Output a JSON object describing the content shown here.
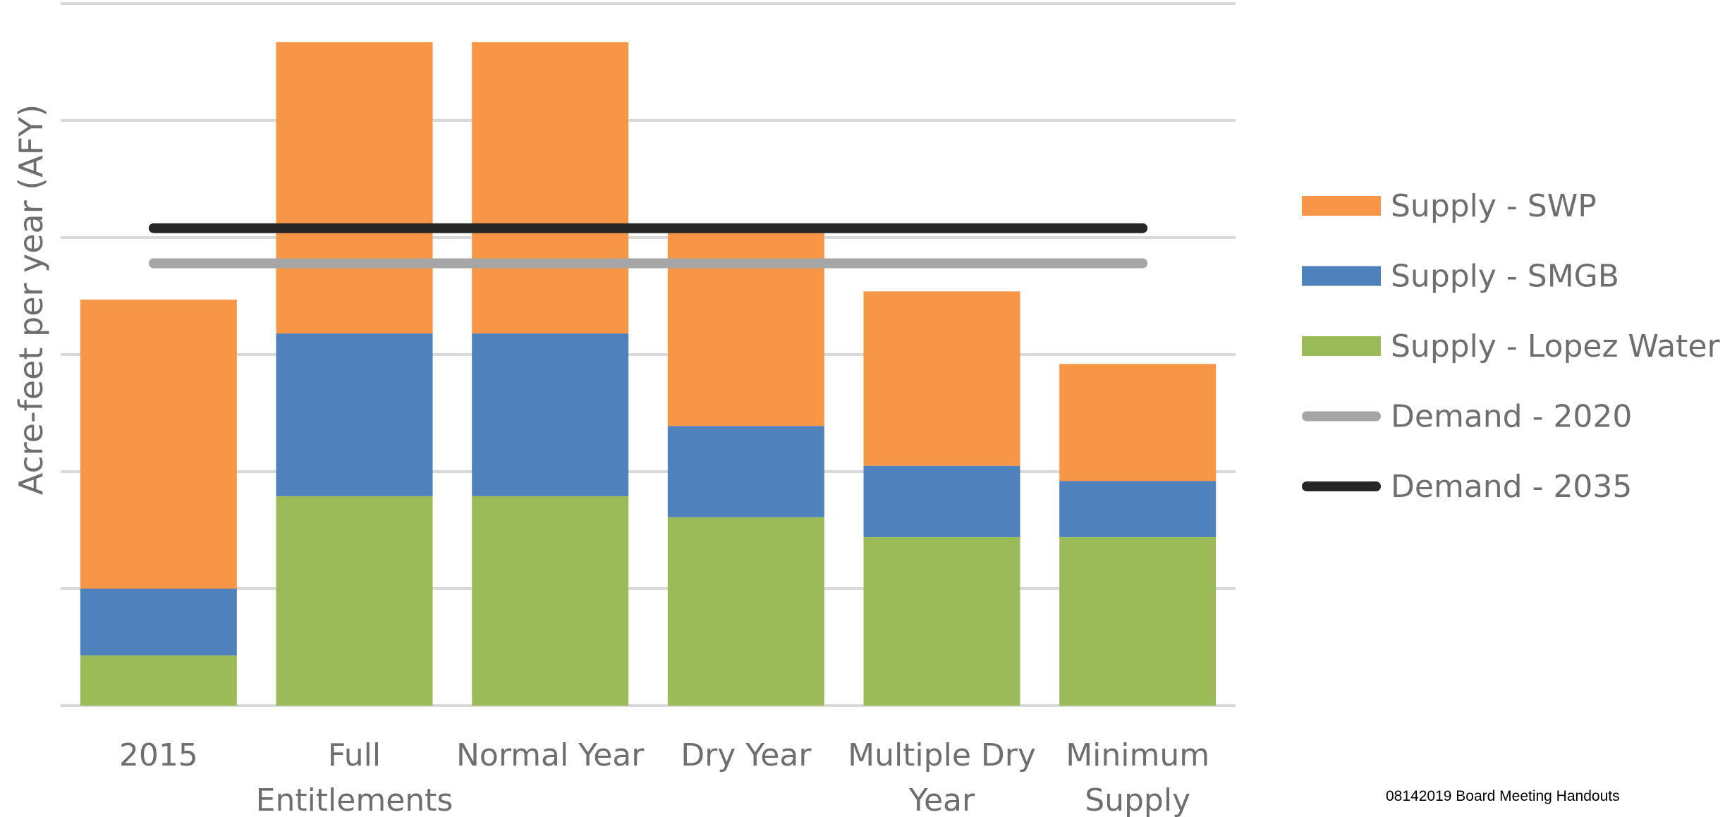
{
  "chart_data": {
    "type": "bar",
    "stacked": true,
    "title": "",
    "ylabel": "Acre-feet  per year (AFY)",
    "xlabel": "",
    "ylim": [
      0,
      6
    ],
    "yticks_shown": false,
    "grid": true,
    "legend_position": "right",
    "categories": [
      "2015",
      "Full Entitlements",
      "Normal Year",
      "Dry Year",
      "Multiple Dry Year",
      "Minimum Supply"
    ],
    "category_lines": [
      [
        "2015"
      ],
      [
        "Full",
        "Entitlements"
      ],
      [
        "Normal Year"
      ],
      [
        "Dry Year"
      ],
      [
        "Multiple Dry",
        "Year"
      ],
      [
        "Minimum",
        "Supply"
      ]
    ],
    "series": [
      {
        "name": "Supply - Lopez Water",
        "color": "#9bbb59",
        "values": [
          0.43,
          1.79,
          1.79,
          1.61,
          1.44,
          1.44
        ]
      },
      {
        "name": "Supply - SMGB",
        "color": "#4f81bd",
        "values": [
          0.57,
          1.39,
          1.39,
          0.78,
          0.61,
          0.48
        ]
      },
      {
        "name": "Supply - SWP",
        "color": "#f79646",
        "values": [
          2.47,
          2.49,
          2.49,
          1.67,
          1.49,
          1.0
        ]
      }
    ],
    "lines": [
      {
        "name": "Demand - 2020",
        "color": "#a6a6a6",
        "value": 3.78
      },
      {
        "name": "Demand - 2035",
        "color": "#262626",
        "value": 4.08
      }
    ],
    "legend": [
      {
        "name": "Supply - SWP",
        "kind": "bar",
        "color": "#f79646"
      },
      {
        "name": "Supply - SMGB",
        "kind": "bar",
        "color": "#4f81bd"
      },
      {
        "name": "Supply - Lopez Water",
        "kind": "bar",
        "color": "#9bbb59"
      },
      {
        "name": "Demand - 2020",
        "kind": "line",
        "color": "#a6a6a6"
      },
      {
        "name": "Demand - 2035",
        "kind": "line",
        "color": "#262626"
      }
    ]
  },
  "footer": {
    "note": "08142019 Board Meeting Handouts"
  }
}
